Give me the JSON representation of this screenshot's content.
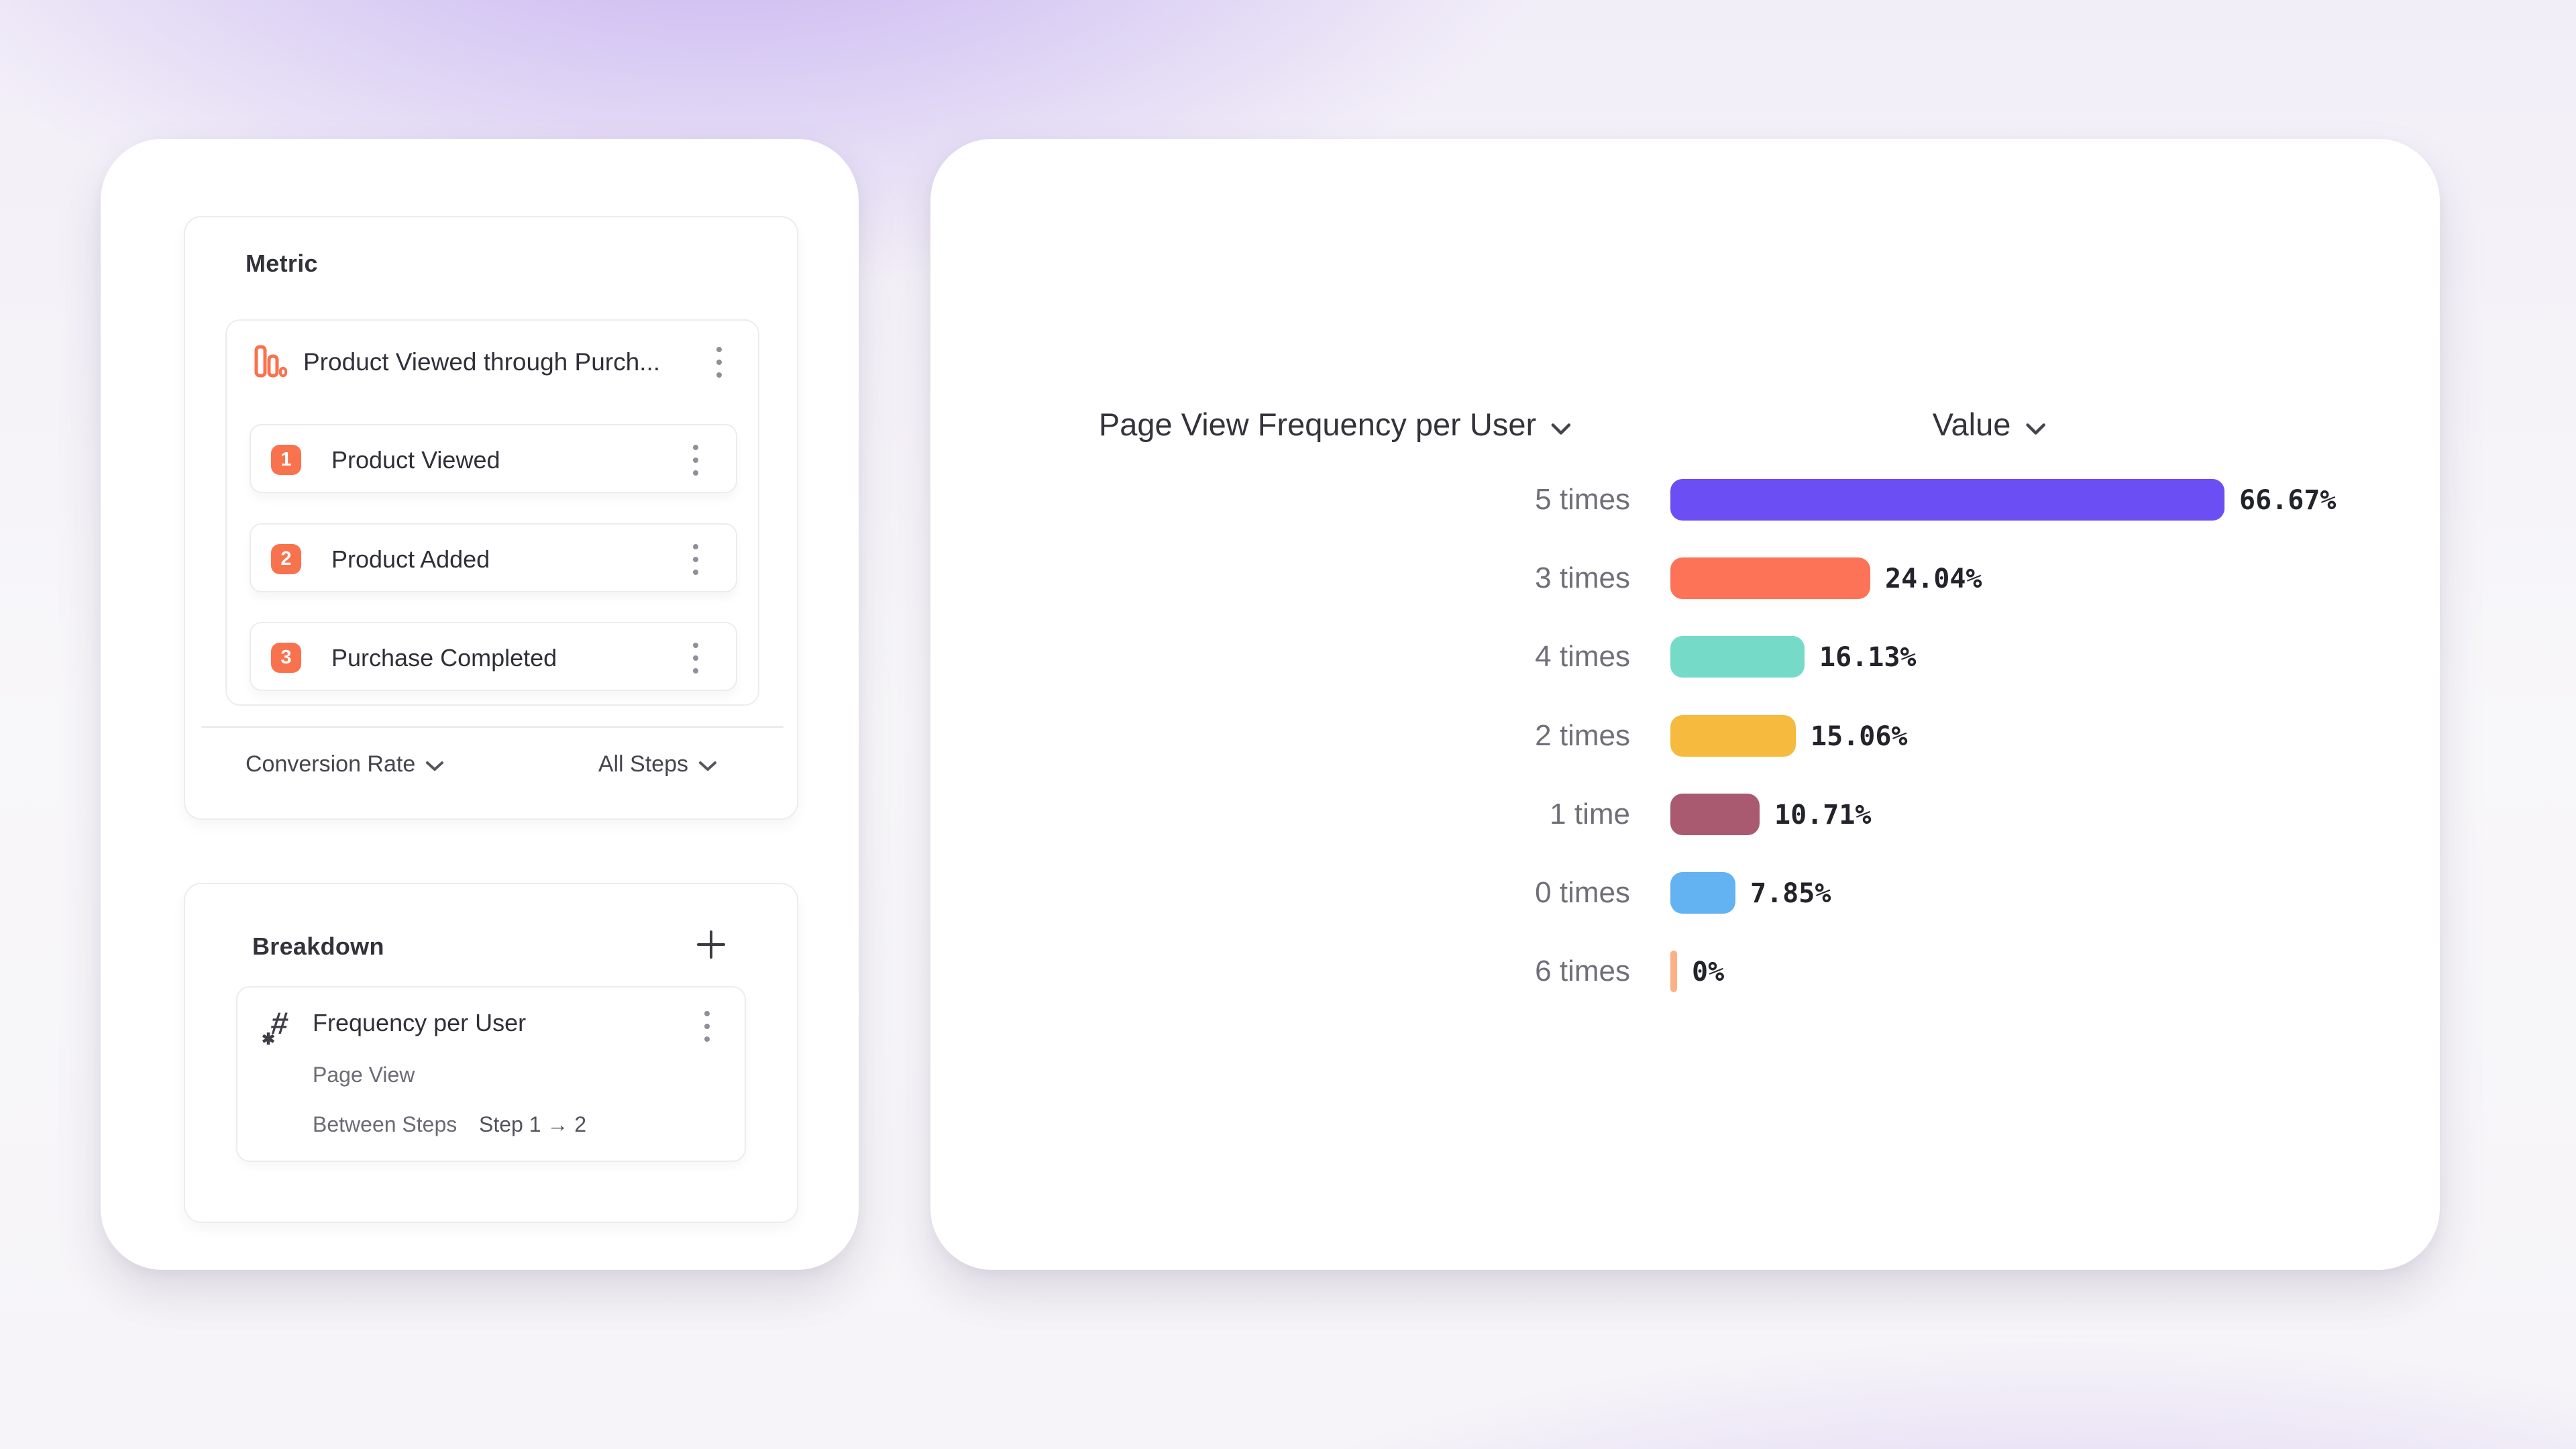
{
  "colors": {
    "accent_orange": "#F9724E",
    "card_bg": "#FFFFFF",
    "border": "#ECECF0",
    "background_purple": "#9670E8"
  },
  "icons": {
    "metric_type": "bar-chart-outline-icon",
    "row_menu": "kebab-vertical-icon",
    "dropdown": "chevron-down-icon",
    "add_breakdown": "plus-icon",
    "breakdown_property": "hash-number-icon"
  },
  "left_panel": {
    "metric_section": {
      "title": "Metric",
      "funnel": {
        "title": "Product Viewed through Purch...",
        "steps": [
          {
            "index": "1",
            "label": "Product Viewed"
          },
          {
            "index": "2",
            "label": "Product Added"
          },
          {
            "index": "3",
            "label": "Purchase Completed"
          }
        ]
      },
      "footer": {
        "measure": "Conversion Rate",
        "scope": "All Steps"
      }
    },
    "breakdown_section": {
      "title": "Breakdown",
      "item": {
        "title": "Frequency per User",
        "event": "Page View",
        "between_label": "Between Steps",
        "steps_range": "Step 1 → 2"
      }
    }
  },
  "chart_data": {
    "type": "bar",
    "orientation": "horizontal",
    "title": "Page View Frequency per User",
    "value_header": "Value",
    "categories": [
      "5 times",
      "3 times",
      "4 times",
      "2 times",
      "1 time",
      "0 times",
      "6 times"
    ],
    "values": [
      66.67,
      24.04,
      16.13,
      15.06,
      10.71,
      7.85,
      0
    ],
    "value_labels": [
      "66.67%",
      "24.04%",
      "16.13%",
      "15.06%",
      "10.71%",
      "7.85%",
      "0%"
    ],
    "colors": [
      "#6C4FF4",
      "#FC7357",
      "#75DBC8",
      "#F6BA3E",
      "#A95A70",
      "#63B2F2",
      "#FBB085"
    ],
    "xlim": [
      0,
      66.67
    ],
    "grid": false,
    "legend": "none"
  }
}
